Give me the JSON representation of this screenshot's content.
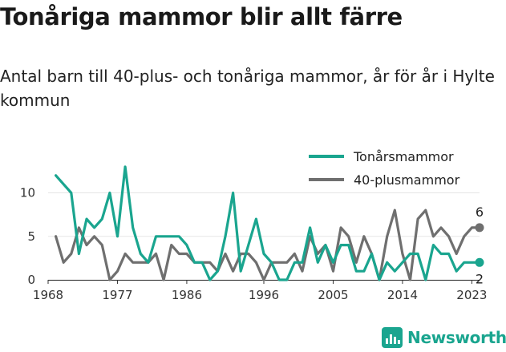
{
  "title": "Tonåriga mammor blir allt färre",
  "subtitle": "Antal barn till 40-plus- och tonåriga mammor, år för år i Hylte kommun",
  "brand": {
    "name": "Newsworthy",
    "icon": "newsworthy-logo-icon"
  },
  "colors": {
    "teen": "#1aa58f",
    "plus40": "#6f6f6f",
    "grid": "#e6e6e6",
    "axis": "#333333"
  },
  "chart_data": {
    "type": "line",
    "title": "Tonåriga mammor blir allt färre",
    "subtitle": "Antal barn till 40-plus- och tonåriga mammor, år för år i Hylte kommun",
    "xlabel": "",
    "ylabel": "",
    "x_ticks": [
      1968,
      1977,
      1986,
      1996,
      2005,
      2014,
      2023
    ],
    "y_ticks": [
      0,
      5,
      10
    ],
    "xlim": [
      1968,
      2024
    ],
    "ylim": [
      0,
      13
    ],
    "grid": "horizontal",
    "legend": "top-right",
    "x": [
      1969,
      1970,
      1971,
      1972,
      1973,
      1974,
      1975,
      1976,
      1977,
      1978,
      1979,
      1980,
      1981,
      1982,
      1983,
      1984,
      1985,
      1986,
      1987,
      1988,
      1989,
      1990,
      1991,
      1992,
      1993,
      1994,
      1995,
      1996,
      1997,
      1998,
      1999,
      2000,
      2001,
      2002,
      2003,
      2004,
      2005,
      2006,
      2007,
      2008,
      2009,
      2010,
      2011,
      2012,
      2013,
      2014,
      2015,
      2016,
      2017,
      2018,
      2019,
      2020,
      2021,
      2022,
      2023,
      2024
    ],
    "series": [
      {
        "name": "Tonårsmammor",
        "color": "#1aa58f",
        "values": [
          12,
          11,
          10,
          3,
          7,
          6,
          7,
          10,
          5,
          13,
          6,
          3,
          2,
          5,
          5,
          5,
          5,
          4,
          2,
          2,
          0,
          1,
          5,
          10,
          1,
          4,
          7,
          3,
          2,
          0,
          0,
          2,
          2,
          6,
          2,
          4,
          2,
          4,
          4,
          1,
          1,
          3,
          0,
          2,
          1,
          2,
          3,
          3,
          0,
          4,
          3,
          3,
          1,
          2,
          2,
          2
        ],
        "end_label": "2"
      },
      {
        "name": "40-plusmammor",
        "color": "#6f6f6f",
        "values": [
          5,
          2,
          3,
          6,
          4,
          5,
          4,
          0,
          1,
          3,
          2,
          2,
          2,
          3,
          0,
          4,
          3,
          3,
          2,
          2,
          2,
          1,
          3,
          1,
          3,
          3,
          2,
          0,
          2,
          2,
          2,
          3,
          1,
          5,
          3,
          4,
          1,
          6,
          5,
          2,
          5,
          3,
          0,
          5,
          8,
          3,
          0,
          7,
          8,
          5,
          6,
          5,
          3,
          5,
          6,
          6
        ],
        "end_label": "6"
      }
    ]
  }
}
